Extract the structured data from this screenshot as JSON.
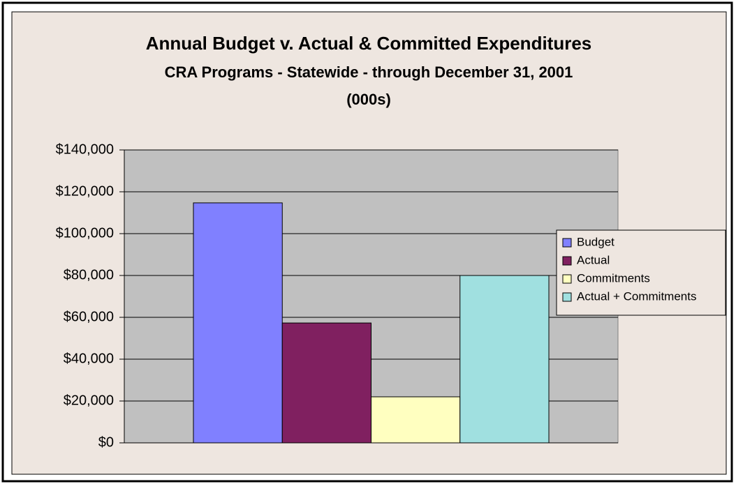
{
  "chart_data": {
    "type": "bar",
    "title_lines": [
      "Annual Budget v. Actual & Committed Expenditures",
      "CRA Programs - Statewide - through December 31, 2001",
      "(000s)"
    ],
    "categories": [
      null
    ],
    "series": [
      {
        "name": "Budget",
        "color": "#8080ff",
        "values": [
          114700
        ]
      },
      {
        "name": "Actual",
        "color": "#802060",
        "values": [
          57300
        ]
      },
      {
        "name": "Commitments",
        "color": "#ffffc0",
        "values": [
          22000
        ]
      },
      {
        "name": "Actual + Commitments",
        "color": "#a0e0e0",
        "values": [
          80000
        ]
      }
    ],
    "ylim": [
      0,
      140000
    ],
    "yticks": [
      {
        "value": 0,
        "label": "$0"
      },
      {
        "value": 20000,
        "label": "$20,000"
      },
      {
        "value": 40000,
        "label": "$40,000"
      },
      {
        "value": 60000,
        "label": "$60,000"
      },
      {
        "value": 80000,
        "label": "$80,000"
      },
      {
        "value": 100000,
        "label": "$100,000"
      },
      {
        "value": 120000,
        "label": "$120,000"
      },
      {
        "value": 140000,
        "label": "$140,000"
      }
    ],
    "grid": true,
    "legend": "right"
  }
}
